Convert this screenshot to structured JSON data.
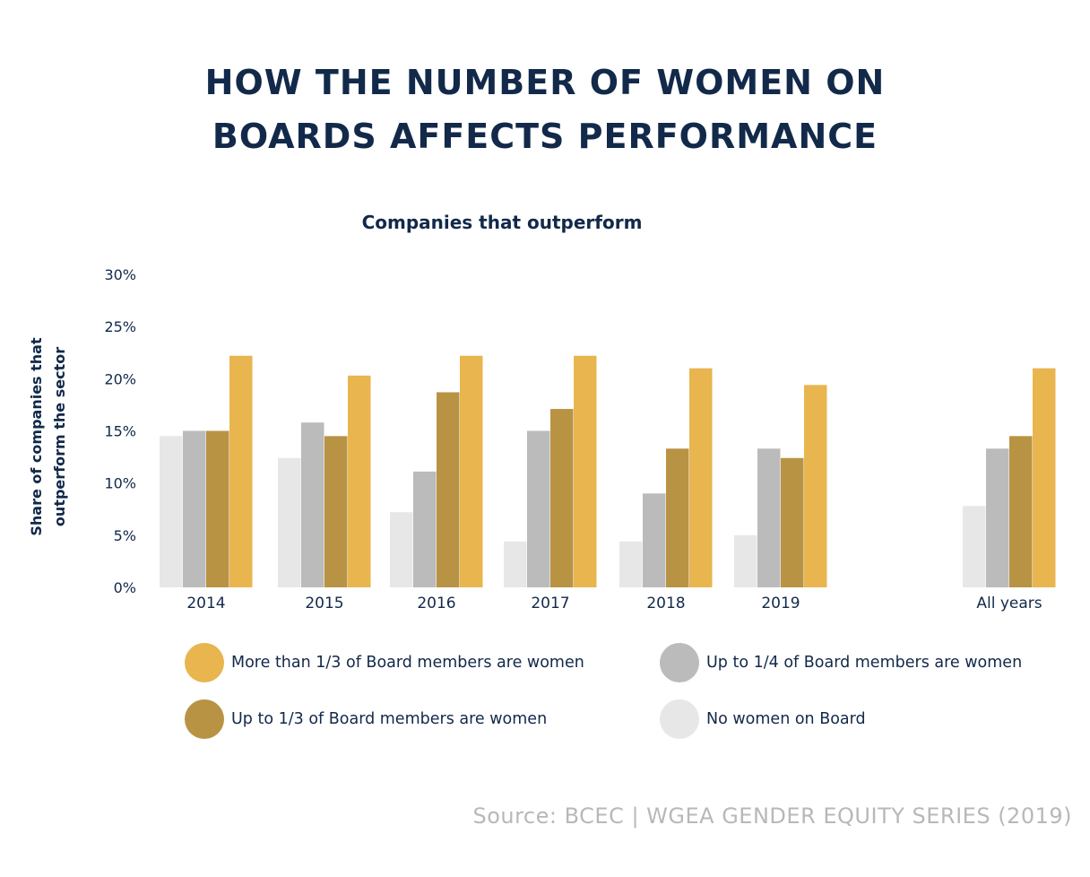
{
  "title_line1": "HOW THE NUMBER OF WOMEN ON",
  "title_line2": "BOARDS AFFECTS PERFORMANCE",
  "source": "Source: BCEC | WGEA GENDER EQUITY SERIES (2019)",
  "chart_data": {
    "type": "bar",
    "title": "Companies that outperform",
    "ylabel_lines": [
      "Share of companies that",
      "outperform the sector"
    ],
    "xlabel": "",
    "ylim": [
      0,
      30
    ],
    "yticks": [
      "0%",
      "5%",
      "10%",
      "15%",
      "20%",
      "25%",
      "30%"
    ],
    "categories": [
      "2014",
      "2015",
      "2016",
      "2017",
      "2018",
      "2019",
      "All years"
    ],
    "series": [
      {
        "name": "No women on Board",
        "color": "#e7e7e7",
        "values": [
          14.5,
          12.4,
          7.2,
          4.4,
          4.4,
          5.0,
          7.8
        ]
      },
      {
        "name": "Up to 1/4 of Board members are women",
        "color": "#bbbbbb",
        "values": [
          15.0,
          15.8,
          11.1,
          15.0,
          9.0,
          13.3,
          13.3
        ]
      },
      {
        "name": "Up to 1/3 of Board members are women",
        "color": "#b99344",
        "values": [
          15.0,
          14.5,
          18.7,
          17.1,
          13.3,
          12.4,
          14.5
        ]
      },
      {
        "name": "More than 1/3 of Board members are women",
        "color": "#e8b54f",
        "values": [
          22.2,
          20.3,
          22.2,
          22.2,
          21.0,
          19.4,
          21.0
        ]
      }
    ],
    "legend": [
      {
        "label": "More than 1/3 of Board members are women",
        "color": "#e8b54f"
      },
      {
        "label": "Up to 1/4 of Board members are women",
        "color": "#bbbbbb"
      },
      {
        "label": "Up to 1/3 of Board members are women",
        "color": "#b99344"
      },
      {
        "label": "No women on Board",
        "color": "#e7e7e7"
      }
    ]
  }
}
